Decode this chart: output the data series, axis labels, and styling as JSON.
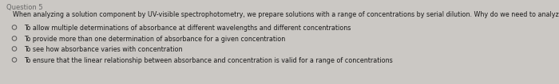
{
  "header": "Question 5",
  "question": "When analyzing a solution component by UV-visible spectrophotometry, we prepare solutions with a range of concentrations by serial dilution. Why do we need to analyze a range of solutions?",
  "options": [
    "To allow multiple determinations of absorbance at different wavelengths and different concentrations",
    "To provide more than one determination of absorbance for a given concentration",
    "To see how absorbance varies with concentration",
    "To ensure that the linear relationship between absorbance and concentration is valid for a range of concentrations"
  ],
  "bg_color": "#cbc8c4",
  "text_color": "#1a1a1a",
  "header_color": "#666666",
  "question_fontsize": 5.8,
  "option_fontsize": 5.8,
  "header_fontsize": 6.0,
  "radio_color": "#555555"
}
